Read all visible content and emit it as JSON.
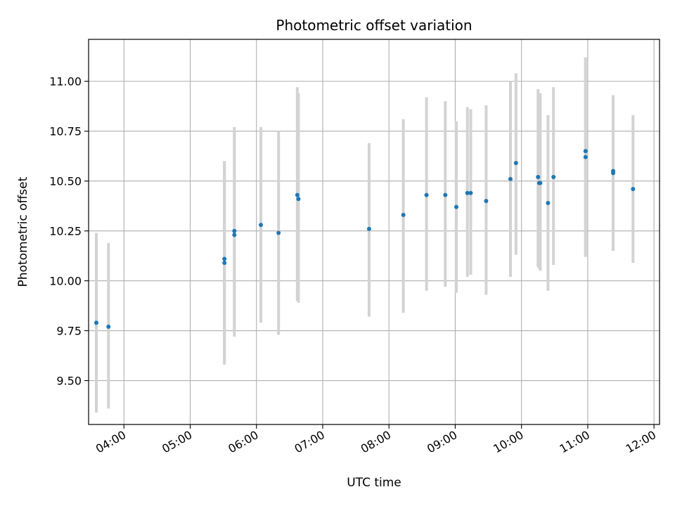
{
  "chart_data": {
    "type": "scatter",
    "title": "Photometric offset variation",
    "xlabel": "UTC time",
    "ylabel": "Photometric offset",
    "xlim": [
      "03:28",
      "12:05"
    ],
    "ylim": [
      9.28,
      11.21
    ],
    "grid": true,
    "legend": "none",
    "x_ticks": [
      "04:00",
      "05:00",
      "06:00",
      "07:00",
      "08:00",
      "09:00",
      "10:00",
      "11:00",
      "12:00"
    ],
    "y_ticks": [
      "9.50",
      "9.75",
      "10.00",
      "10.25",
      "10.50",
      "10.75",
      "11.00"
    ],
    "colors": {
      "point": "#1f77b4",
      "errorbar": "#d3d3d3",
      "grid": "#b0b0b0"
    },
    "points": [
      {
        "x": "03:35",
        "y": 9.79,
        "err_low": 9.34,
        "err_high": 10.24
      },
      {
        "x": "03:46",
        "y": 9.77,
        "err_low": 9.36,
        "err_high": 10.19
      },
      {
        "x": "05:31",
        "y": 10.11,
        "err_low": 9.6,
        "err_high": 10.6
      },
      {
        "x": "05:31",
        "y": 10.09,
        "err_low": 9.58,
        "err_high": 10.6
      },
      {
        "x": "05:40",
        "y": 10.25,
        "err_low": 9.74,
        "err_high": 10.77
      },
      {
        "x": "05:40",
        "y": 10.23,
        "err_low": 9.72,
        "err_high": 10.75
      },
      {
        "x": "06:04",
        "y": 10.28,
        "err_low": 9.79,
        "err_high": 10.77
      },
      {
        "x": "06:20",
        "y": 10.24,
        "err_low": 9.73,
        "err_high": 10.75
      },
      {
        "x": "06:37",
        "y": 10.43,
        "err_low": 9.9,
        "err_high": 10.97
      },
      {
        "x": "06:38",
        "y": 10.41,
        "err_low": 9.89,
        "err_high": 10.94
      },
      {
        "x": "07:42",
        "y": 10.26,
        "err_low": 9.82,
        "err_high": 10.69
      },
      {
        "x": "08:13",
        "y": 10.33,
        "err_low": 9.84,
        "err_high": 10.81
      },
      {
        "x": "08:34",
        "y": 10.43,
        "err_low": 9.95,
        "err_high": 10.92
      },
      {
        "x": "08:51",
        "y": 10.43,
        "err_low": 9.97,
        "err_high": 10.9
      },
      {
        "x": "09:01",
        "y": 10.37,
        "err_low": 9.94,
        "err_high": 10.8
      },
      {
        "x": "09:11",
        "y": 10.44,
        "err_low": 10.02,
        "err_high": 10.87
      },
      {
        "x": "09:14",
        "y": 10.44,
        "err_low": 10.03,
        "err_high": 10.86
      },
      {
        "x": "09:28",
        "y": 10.4,
        "err_low": 9.93,
        "err_high": 10.88
      },
      {
        "x": "09:50",
        "y": 10.51,
        "err_low": 10.02,
        "err_high": 11.0
      },
      {
        "x": "09:55",
        "y": 10.59,
        "err_low": 10.13,
        "err_high": 11.04
      },
      {
        "x": "10:15",
        "y": 10.52,
        "err_low": 10.07,
        "err_high": 10.96
      },
      {
        "x": "10:16",
        "y": 10.49,
        "err_low": 10.06,
        "err_high": 10.93
      },
      {
        "x": "10:17",
        "y": 10.49,
        "err_low": 10.05,
        "err_high": 10.94
      },
      {
        "x": "10:24",
        "y": 10.39,
        "err_low": 9.95,
        "err_high": 10.83
      },
      {
        "x": "10:29",
        "y": 10.52,
        "err_low": 10.08,
        "err_high": 10.97
      },
      {
        "x": "10:58",
        "y": 10.65,
        "err_low": 10.12,
        "err_high": 11.12
      },
      {
        "x": "10:58",
        "y": 10.62,
        "err_low": 10.12,
        "err_high": 11.12
      },
      {
        "x": "11:23",
        "y": 10.54,
        "err_low": 10.15,
        "err_high": 10.93
      },
      {
        "x": "11:23",
        "y": 10.55,
        "err_low": 10.15,
        "err_high": 10.93
      },
      {
        "x": "11:41",
        "y": 10.46,
        "err_low": 10.09,
        "err_high": 10.83
      }
    ]
  }
}
